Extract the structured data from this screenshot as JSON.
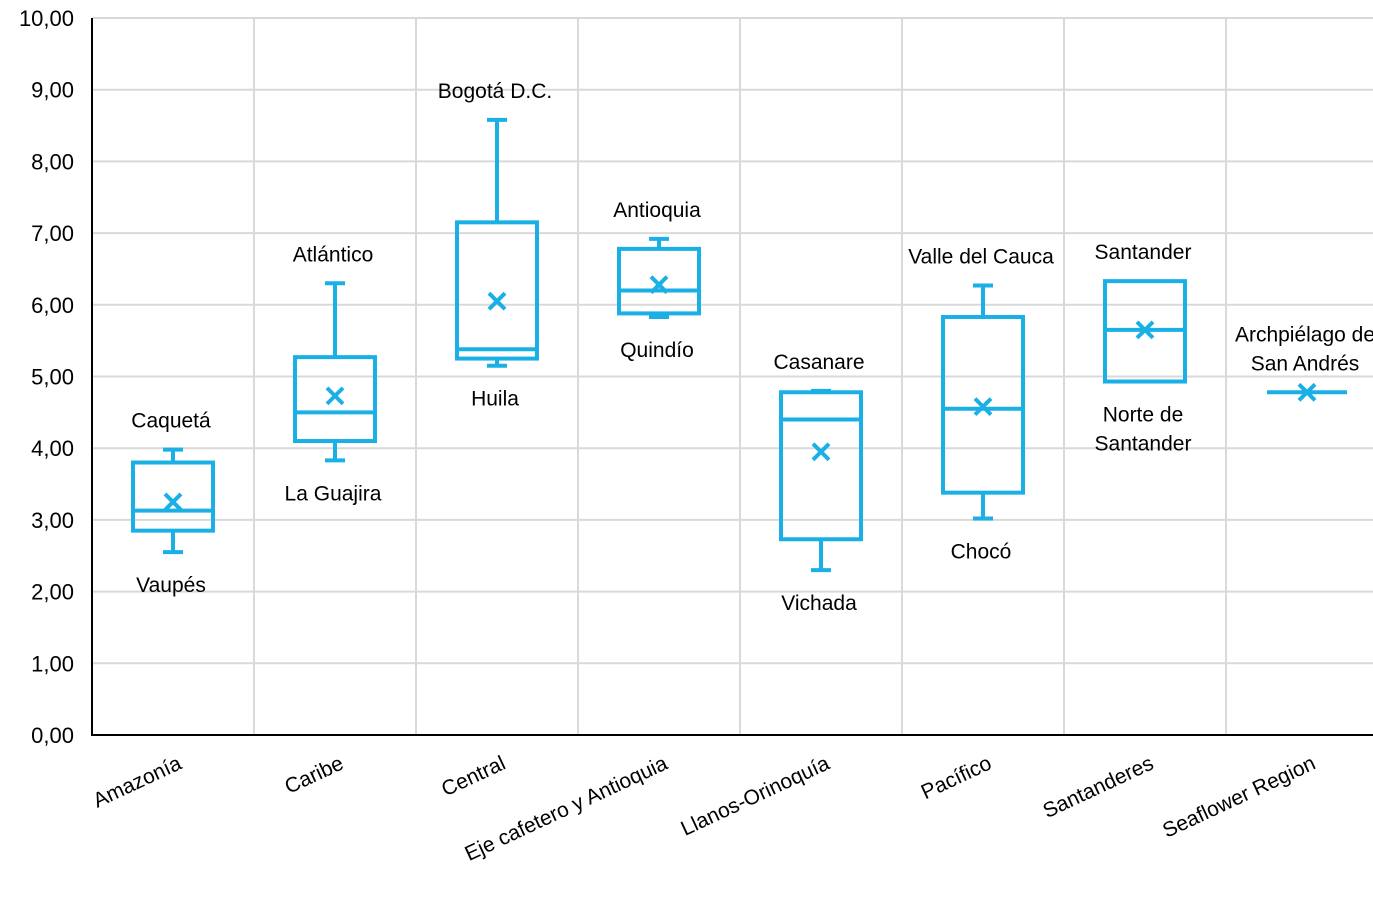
{
  "chart_data": {
    "type": "box",
    "color": "#1ab0e6",
    "ylim": [
      0,
      10
    ],
    "yticks": [
      "0,00",
      "1,00",
      "2,00",
      "3,00",
      "4,00",
      "5,00",
      "6,00",
      "7,00",
      "8,00",
      "9,00",
      "10,00"
    ],
    "grid": true,
    "categories": [
      "Amazonía",
      "Caribe",
      "Central",
      "Eje cafetero y Antioquia",
      "Llanos-Orinoquía",
      "Pacífico",
      "Santanderes",
      "Seaflower Region"
    ],
    "boxes": [
      {
        "category": "Amazonía",
        "min": 2.55,
        "q1": 2.85,
        "median": 3.13,
        "q3": 3.8,
        "max": 3.98,
        "mean": 3.25,
        "top_label": [
          "Caquetá"
        ],
        "bottom_label": [
          "Vaupés"
        ]
      },
      {
        "category": "Caribe",
        "min": 3.83,
        "q1": 4.1,
        "median": 4.5,
        "q3": 5.27,
        "max": 6.3,
        "mean": 4.73,
        "top_label": [
          "Atlántico"
        ],
        "bottom_label": [
          "La Guajira"
        ]
      },
      {
        "category": "Central",
        "min": 5.15,
        "q1": 5.25,
        "median": 5.38,
        "q3": 7.15,
        "max": 8.58,
        "mean": 6.05,
        "top_label": [
          "Bogotá D.C."
        ],
        "bottom_label": [
          "Huila"
        ]
      },
      {
        "category": "Eje cafetero y Antioquia",
        "min": 5.83,
        "q1": 5.88,
        "median": 6.2,
        "q3": 6.78,
        "max": 6.92,
        "mean": 6.28,
        "top_label": [
          "Antioquia"
        ],
        "bottom_label": [
          "Quindío"
        ]
      },
      {
        "category": "Llanos-Orinoquía",
        "min": 2.3,
        "q1": 2.73,
        "median": 4.4,
        "q3": 4.78,
        "max": 4.8,
        "mean": 3.95,
        "top_label": [
          "Casanare"
        ],
        "bottom_label": [
          "Vichada"
        ]
      },
      {
        "category": "Pacífico",
        "min": 3.02,
        "q1": 3.38,
        "median": 4.55,
        "q3": 5.83,
        "max": 6.27,
        "mean": 4.58,
        "top_label": [
          "Valle del Cauca"
        ],
        "bottom_label": [
          "Chocó"
        ]
      },
      {
        "category": "Santanderes",
        "min": 4.93,
        "q1": 4.93,
        "median": 5.65,
        "q3": 6.33,
        "max": 6.33,
        "mean": 5.65,
        "top_label": [
          "Santander"
        ],
        "bottom_label": [
          "Norte de",
          "Santander"
        ]
      },
      {
        "category": "Seaflower Region",
        "min": 4.78,
        "q1": 4.78,
        "median": 4.78,
        "q3": 4.78,
        "max": 4.78,
        "mean": 4.78,
        "top_label": [
          "Archpiélago de",
          "San Andrés"
        ],
        "bottom_label": []
      }
    ]
  }
}
